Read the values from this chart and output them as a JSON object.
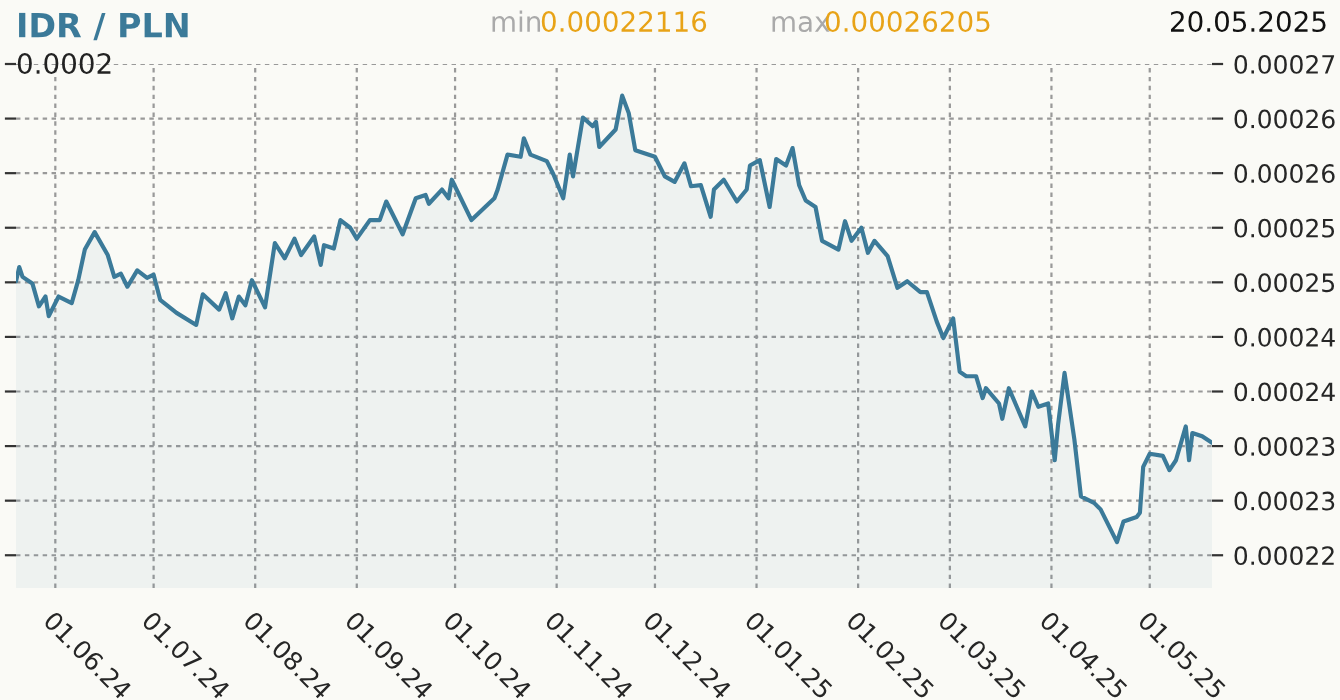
{
  "chart_data": {
    "type": "area",
    "title": "IDR / PLN",
    "annotations": [
      "0.0002",
      "min",
      "0.00022116",
      "max",
      "0.00026205",
      "20.05.2025"
    ],
    "x": [
      "2024-05-20",
      "2024-05-21",
      "2024-05-22",
      "2024-05-25",
      "2024-05-27",
      "2024-05-29",
      "2024-05-30",
      "2024-06-02",
      "2024-06-04",
      "2024-06-06",
      "2024-06-08",
      "2024-06-10",
      "2024-06-13",
      "2024-06-17",
      "2024-06-19",
      "2024-06-21",
      "2024-06-23",
      "2024-06-26",
      "2024-06-29",
      "2024-07-01",
      "2024-07-03",
      "2024-07-08",
      "2024-07-14",
      "2024-07-16",
      "2024-07-21",
      "2024-07-23",
      "2024-07-25",
      "2024-07-27",
      "2024-07-29",
      "2024-07-31",
      "2024-08-04",
      "2024-08-07",
      "2024-08-10",
      "2024-08-13",
      "2024-08-15",
      "2024-08-19",
      "2024-08-21",
      "2024-08-22",
      "2024-08-25",
      "2024-08-27",
      "2024-08-30",
      "2024-09-01",
      "2024-09-05",
      "2024-09-08",
      "2024-09-10",
      "2024-09-15",
      "2024-09-19",
      "2024-09-22",
      "2024-09-23",
      "2024-09-27",
      "2024-09-29",
      "2024-09-30",
      "2024-10-06",
      "2024-10-13",
      "2024-10-14",
      "2024-10-17",
      "2024-10-21",
      "2024-10-22",
      "2024-10-24",
      "2024-10-29",
      "2024-10-31",
      "2024-11-03",
      "2024-11-05",
      "2024-11-06",
      "2024-11-09",
      "2024-11-12",
      "2024-11-13",
      "2024-11-14",
      "2024-11-19",
      "2024-11-21",
      "2024-11-23",
      "2024-11-25",
      "2024-12-01",
      "2024-12-04",
      "2024-12-07",
      "2024-12-10",
      "2024-12-12",
      "2024-12-15",
      "2024-12-18",
      "2024-12-19",
      "2024-12-22",
      "2024-12-26",
      "2024-12-29",
      "2024-12-30",
      "2025-01-02",
      "2025-01-05",
      "2025-01-07",
      "2025-01-10",
      "2025-01-12",
      "2025-01-14",
      "2025-01-16",
      "2025-01-19",
      "2025-01-21",
      "2025-01-26",
      "2025-01-28",
      "2025-01-30",
      "2025-02-02",
      "2025-02-04",
      "2025-02-06",
      "2025-02-10",
      "2025-02-13",
      "2025-02-16",
      "2025-02-20",
      "2025-02-22",
      "2025-02-25",
      "2025-02-27",
      "2025-03-02",
      "2025-03-04",
      "2025-03-06",
      "2025-03-09",
      "2025-03-11",
      "2025-03-12",
      "2025-03-16",
      "2025-03-17",
      "2025-03-19",
      "2025-03-24",
      "2025-03-26",
      "2025-03-28",
      "2025-03-31",
      "2025-04-02",
      "2025-04-03",
      "2025-04-05",
      "2025-04-08",
      "2025-04-10",
      "2025-04-14",
      "2025-04-16",
      "2025-04-21",
      "2025-04-23",
      "2025-04-27",
      "2025-04-28",
      "2025-04-29",
      "2025-05-01",
      "2025-05-05",
      "2025-05-07",
      "2025-05-09",
      "2025-05-12",
      "2025-05-13",
      "2025-05-14",
      "2025-05-17",
      "2025-05-20"
    ],
    "series": [
      {
        "color": "#3b7a99",
        "values": [
          0.0002451,
          0.0002464,
          0.0002455,
          0.0002449,
          0.0002428,
          0.0002437,
          0.0002419,
          0.0002437,
          0.0002434,
          0.0002431,
          0.0002452,
          0.000248,
          0.0002496,
          0.0002475,
          0.0002455,
          0.0002458,
          0.0002446,
          0.0002461,
          0.0002454,
          0.0002457,
          0.0002434,
          0.0002422,
          0.0002411,
          0.0002439,
          0.0002425,
          0.000244,
          0.0002417,
          0.0002437,
          0.0002429,
          0.0002452,
          0.0002427,
          0.0002486,
          0.0002472,
          0.000249,
          0.0002475,
          0.0002492,
          0.0002466,
          0.0002484,
          0.0002481,
          0.0002507,
          0.00025,
          0.000249,
          0.0002507,
          0.0002507,
          0.0002524,
          0.0002494,
          0.0002527,
          0.000253,
          0.0002522,
          0.0002535,
          0.0002527,
          0.0002544,
          0.0002507,
          0.0002527,
          0.0002535,
          0.0002567,
          0.0002565,
          0.0002582,
          0.0002567,
          0.0002561,
          0.0002549,
          0.0002527,
          0.0002567,
          0.0002547,
          0.0002601,
          0.0002593,
          0.0002597,
          0.0002574,
          0.000259,
          0.0002621,
          0.0002605,
          0.0002571,
          0.0002565,
          0.0002547,
          0.0002542,
          0.0002559,
          0.0002538,
          0.0002539,
          0.000251,
          0.0002535,
          0.0002544,
          0.0002524,
          0.0002535,
          0.0002557,
          0.0002562,
          0.0002519,
          0.0002563,
          0.0002557,
          0.0002573,
          0.0002539,
          0.0002525,
          0.0002519,
          0.0002488,
          0.000248,
          0.0002506,
          0.0002488,
          0.00025,
          0.0002477,
          0.0002488,
          0.0002474,
          0.0002445,
          0.0002451,
          0.0002441,
          0.0002441,
          0.0002414,
          0.0002399,
          0.0002417,
          0.0002368,
          0.0002364,
          0.0002364,
          0.0002344,
          0.0002353,
          0.0002339,
          0.0002325,
          0.0002353,
          0.0002318,
          0.000235,
          0.0002336,
          0.0002339,
          0.0002287,
          0.0002319,
          0.0002367,
          0.0002306,
          0.0002254,
          0.0002248,
          0.0002242,
          0.0002212,
          0.0002231,
          0.0002235,
          0.0002239,
          0.0002281,
          0.0002293,
          0.0002291,
          0.0002278,
          0.0002287,
          0.0002318,
          0.0002287,
          0.0002312,
          0.0002309,
          0.0002303
        ]
      }
    ],
    "xlim": [
      "2024-05-20",
      "2025-05-20"
    ],
    "xticks": [
      {
        "value": "2024-06-01",
        "label": "01.06.24"
      },
      {
        "value": "2024-07-01",
        "label": "01.07.24"
      },
      {
        "value": "2024-08-01",
        "label": "01.08.24"
      },
      {
        "value": "2024-09-01",
        "label": "01.09.24"
      },
      {
        "value": "2024-10-01",
        "label": "01.10.24"
      },
      {
        "value": "2024-11-01",
        "label": "01.11.24"
      },
      {
        "value": "2024-12-01",
        "label": "01.12.24"
      },
      {
        "value": "2025-01-01",
        "label": "01.01.25"
      },
      {
        "value": "2025-02-01",
        "label": "01.02.25"
      },
      {
        "value": "2025-03-01",
        "label": "01.03.25"
      },
      {
        "value": "2025-04-01",
        "label": "01.04.25"
      },
      {
        "value": "2025-05-01",
        "label": "01.05.25"
      }
    ],
    "ylim": [
      0.000217,
      0.000265
    ],
    "yticks": [
      {
        "value": 0.00022,
        "label": "0.00022"
      },
      {
        "value": 0.000225,
        "label": "0.00023"
      },
      {
        "value": 0.00023,
        "label": "0.00023"
      },
      {
        "value": 0.000235,
        "label": "0.00024"
      },
      {
        "value": 0.00024,
        "label": "0.00024"
      },
      {
        "value": 0.000245,
        "label": "0.00025"
      },
      {
        "value": 0.00025,
        "label": "0.00025"
      },
      {
        "value": 0.000255,
        "label": "0.00026"
      },
      {
        "value": 0.00026,
        "label": "0.00026"
      },
      {
        "value": 0.000265,
        "label": "0.00027"
      }
    ],
    "grid": true,
    "legend": false
  }
}
